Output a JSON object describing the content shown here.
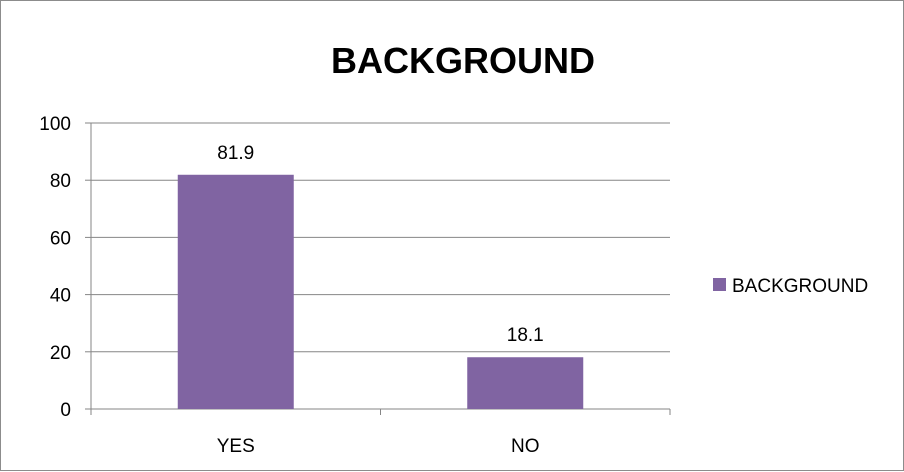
{
  "chart_data": {
    "type": "bar",
    "title": "BACKGROUND",
    "categories": [
      "YES",
      "NO"
    ],
    "series": [
      {
        "name": "BACKGROUND",
        "values": [
          81.9,
          18.1
        ],
        "color": "#8064a2"
      }
    ],
    "data_labels": [
      "81.9",
      "18.1"
    ],
    "ylim": [
      0,
      100
    ],
    "yticks": [
      "0",
      "20",
      "40",
      "60",
      "80",
      "100"
    ],
    "grid": true,
    "legend_position": "right"
  }
}
